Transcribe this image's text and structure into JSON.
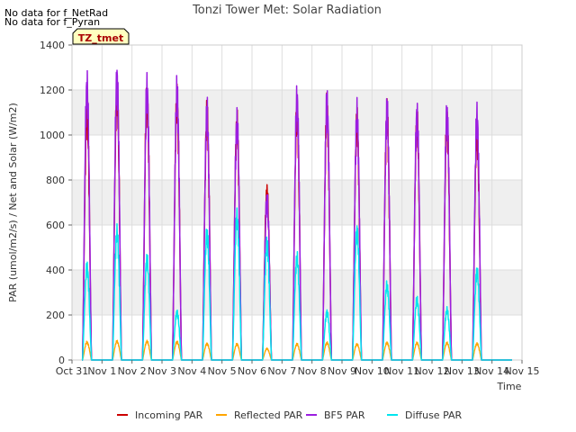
{
  "chart_data": {
    "type": "line",
    "title": "Tonzi Tower Met: Solar Radiation",
    "xlabel": "Time",
    "ylabel": "PAR (umol/m2/s) / Net and Solar (W/m2)",
    "ylim": [
      0,
      1400
    ],
    "yticks": [
      0,
      200,
      400,
      600,
      800,
      1000,
      1200,
      1400
    ],
    "xlim": [
      0,
      15
    ],
    "xticks": [
      {
        "v": 0,
        "label": "Oct 31"
      },
      {
        "v": 1,
        "label": "Nov 1"
      },
      {
        "v": 2,
        "label": "Nov 2"
      },
      {
        "v": 3,
        "label": "Nov 3"
      },
      {
        "v": 4,
        "label": "Nov 4"
      },
      {
        "v": 5,
        "label": "Nov 5"
      },
      {
        "v": 6,
        "label": "Nov 6"
      },
      {
        "v": 7,
        "label": "Nov 7"
      },
      {
        "v": 8,
        "label": "Nov 8"
      },
      {
        "v": 9,
        "label": "Nov 9"
      },
      {
        "v": 10,
        "label": "Nov 10"
      },
      {
        "v": 11,
        "label": "Nov 11"
      },
      {
        "v": 12,
        "label": "Nov 12"
      },
      {
        "v": 13,
        "label": "Nov 13"
      },
      {
        "v": 14,
        "label": "Nov 14"
      },
      {
        "v": 15,
        "label": "Nov 15"
      }
    ],
    "days": [
      0,
      1,
      2,
      3,
      4,
      5,
      6,
      7,
      8,
      9,
      10,
      11,
      12,
      13,
      14
    ],
    "series": [
      {
        "name": "Incoming PAR",
        "color": "#cc0000",
        "width": 1.5,
        "peaks": [
          1100,
          1180,
          1160,
          1140,
          1080,
          1040,
          740,
          1100,
          1110,
          1050,
          1080,
          1060,
          1060,
          1000,
          0
        ]
      },
      {
        "name": "Reflected PAR",
        "color": "#ffa500",
        "width": 1.3,
        "peaks": [
          78,
          82,
          82,
          80,
          72,
          70,
          50,
          70,
          76,
          70,
          76,
          75,
          75,
          72,
          0
        ]
      },
      {
        "name": "BF5 PAR",
        "color": "#9b1ee0",
        "width": 1.5,
        "peaks": [
          1210,
          1240,
          1200,
          1180,
          1090,
          1050,
          710,
          1150,
          1130,
          1080,
          1100,
          1080,
          1090,
          1070,
          0
        ]
      },
      {
        "name": "Diffuse PAR",
        "color": "#00e5ee",
        "width": 1.5,
        "peaks": [
          410,
          560,
          445,
          210,
          560,
          630,
          510,
          450,
          210,
          570,
          330,
          265,
          220,
          390,
          0
        ]
      }
    ],
    "legend": {
      "position": "bottom"
    }
  },
  "annotations": {
    "nodata_line1": "No data for f_NetRad",
    "nodata_line2": "No data for f_Pyran",
    "site_tag": "TZ_tmet"
  },
  "colors": {
    "band": "#efefef",
    "grid": "#dddddd",
    "tag_fill": "#ffffc0",
    "tag_text": "#aa0000"
  }
}
